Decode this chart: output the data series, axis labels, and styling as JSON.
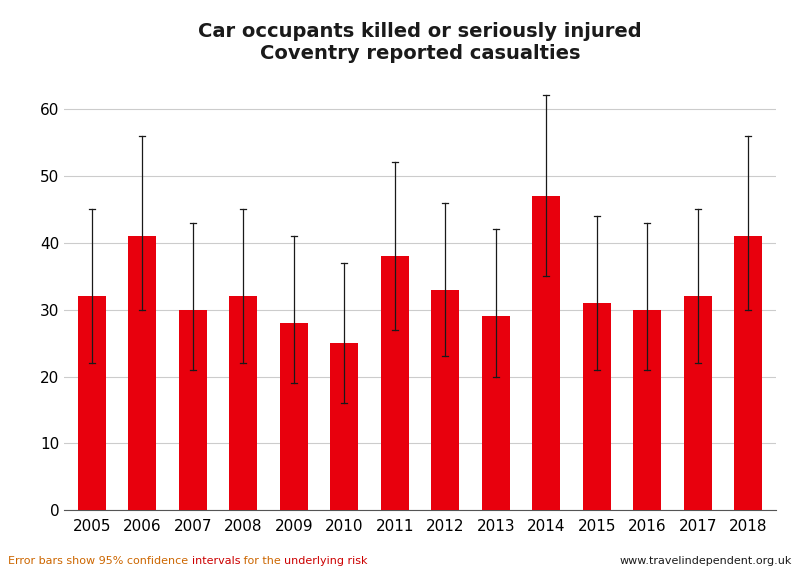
{
  "title_line1": "Car occupants killed or seriously injured",
  "title_line2": "Coventry reported casualties",
  "years": [
    2005,
    2006,
    2007,
    2008,
    2009,
    2010,
    2011,
    2012,
    2013,
    2014,
    2015,
    2016,
    2017,
    2018
  ],
  "values": [
    32,
    41,
    30,
    32,
    28,
    25,
    38,
    33,
    29,
    47,
    31,
    30,
    32,
    41
  ],
  "yerr_upper": [
    13,
    15,
    13,
    13,
    13,
    12,
    14,
    13,
    13,
    15,
    13,
    13,
    13,
    15
  ],
  "yerr_lower": [
    10,
    11,
    9,
    10,
    9,
    9,
    11,
    10,
    9,
    12,
    10,
    9,
    10,
    11
  ],
  "bar_color": "#e8000d",
  "error_color": "#1a1a1a",
  "ylim": [
    0,
    65
  ],
  "yticks": [
    0,
    10,
    20,
    30,
    40,
    50,
    60
  ],
  "grid_color": "#cccccc",
  "footer_right": "www.travelindependent.org.uk",
  "footer_orange": "#cc6600",
  "footer_red": "#cc0000",
  "footer_dark": "#1a1a1a",
  "background_color": "#ffffff",
  "title_fontsize": 14,
  "tick_fontsize": 11,
  "footer_fontsize": 8
}
